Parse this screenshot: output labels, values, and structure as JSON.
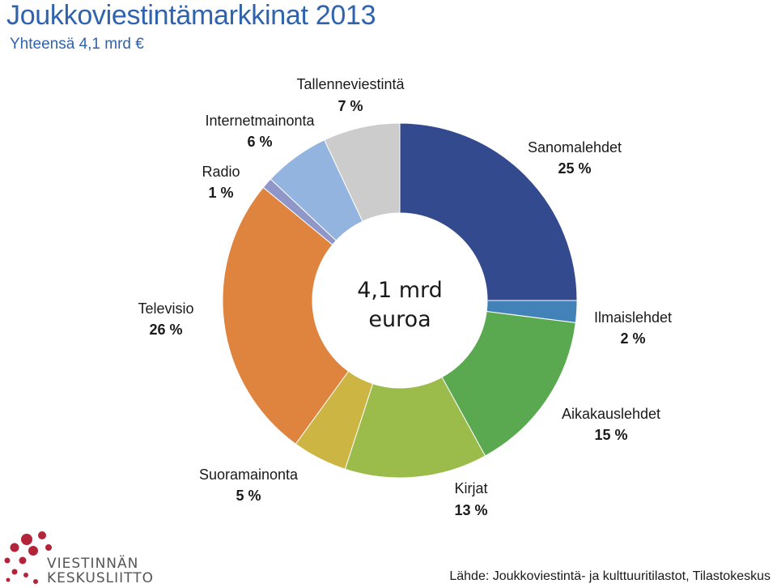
{
  "page": {
    "title": "Joukkoviestintämarkkinat 2013",
    "subtitle": "Yhteensä 4,1 mrd €",
    "source": "Lähde: Joukkoviestintä- ja kulttuuritilastot, Tilastokeskus",
    "logo_line1": "VIESTINNÄN",
    "logo_line2": "KESKUSLIITTO"
  },
  "chart_data": {
    "type": "pie",
    "variant": "doughnut",
    "title": "Joukkoviestintämarkkinat 2013",
    "subtitle": "Yhteensä 4,1 mrd €",
    "center_label": [
      "4,1 mrd",
      "euroa"
    ],
    "slices": [
      {
        "name": "Sanomalehdet",
        "value": 25,
        "label": "25 %",
        "color": "#344a8f"
      },
      {
        "name": "Ilmaislehdet",
        "value": 2,
        "label": "2 %",
        "color": "#4282b8"
      },
      {
        "name": "Aikakauslehdet",
        "value": 15,
        "label": "15 %",
        "color": "#5aa84f"
      },
      {
        "name": "Kirjat",
        "value": 13,
        "label": "13 %",
        "color": "#9bbb4a"
      },
      {
        "name": "Suoramainonta",
        "value": 5,
        "label": "5 %",
        "color": "#cdb544"
      },
      {
        "name": "Televisio",
        "value": 26,
        "label": "26 %",
        "color": "#de843f"
      },
      {
        "name": "Radio",
        "value": 1,
        "label": "1 %",
        "color": "#8f97c8"
      },
      {
        "name": "Internetmainonta",
        "value": 6,
        "label": "6 %",
        "color": "#93b4de"
      },
      {
        "name": "Tallenneviestintä",
        "value": 7,
        "label": "7 %",
        "color": "#cccccc"
      }
    ]
  }
}
